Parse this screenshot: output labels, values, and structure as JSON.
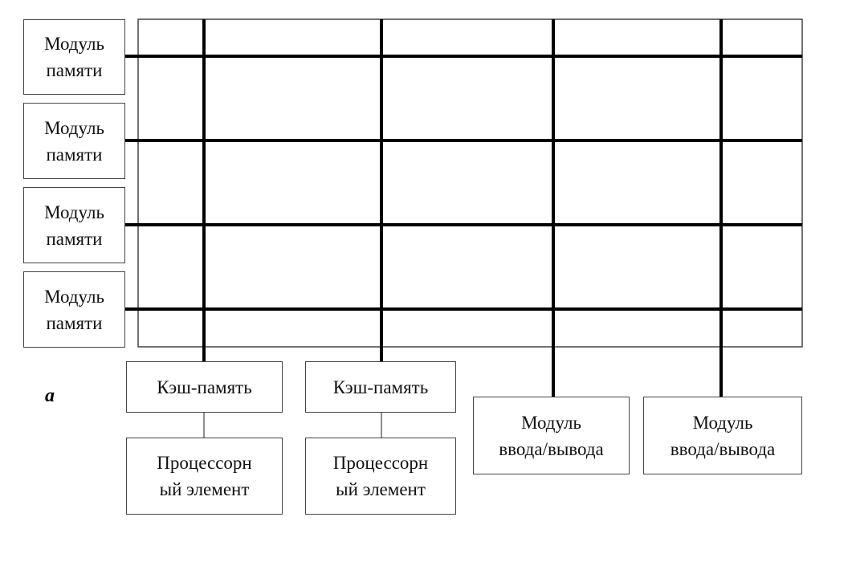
{
  "diagram": {
    "memory_modules": [
      {
        "line1": "Модуль",
        "line2": "памяти"
      },
      {
        "line1": "Модуль",
        "line2": "памяти"
      },
      {
        "line1": "Модуль",
        "line2": "памяти"
      },
      {
        "line1": "Модуль",
        "line2": "памяти"
      }
    ],
    "caches": [
      {
        "label": "Кэш-память"
      },
      {
        "label": "Кэш-память"
      }
    ],
    "processors": [
      {
        "line1": "Процессорн",
        "line2": "ый элемент"
      },
      {
        "line1": "Процессорн",
        "line2": "ый элемент"
      }
    ],
    "io_modules": [
      {
        "line1": "Модуль",
        "line2": "ввода/вывода"
      },
      {
        "line1": "Модуль",
        "line2": "ввода/вывода"
      }
    ],
    "figure_label": "а"
  }
}
